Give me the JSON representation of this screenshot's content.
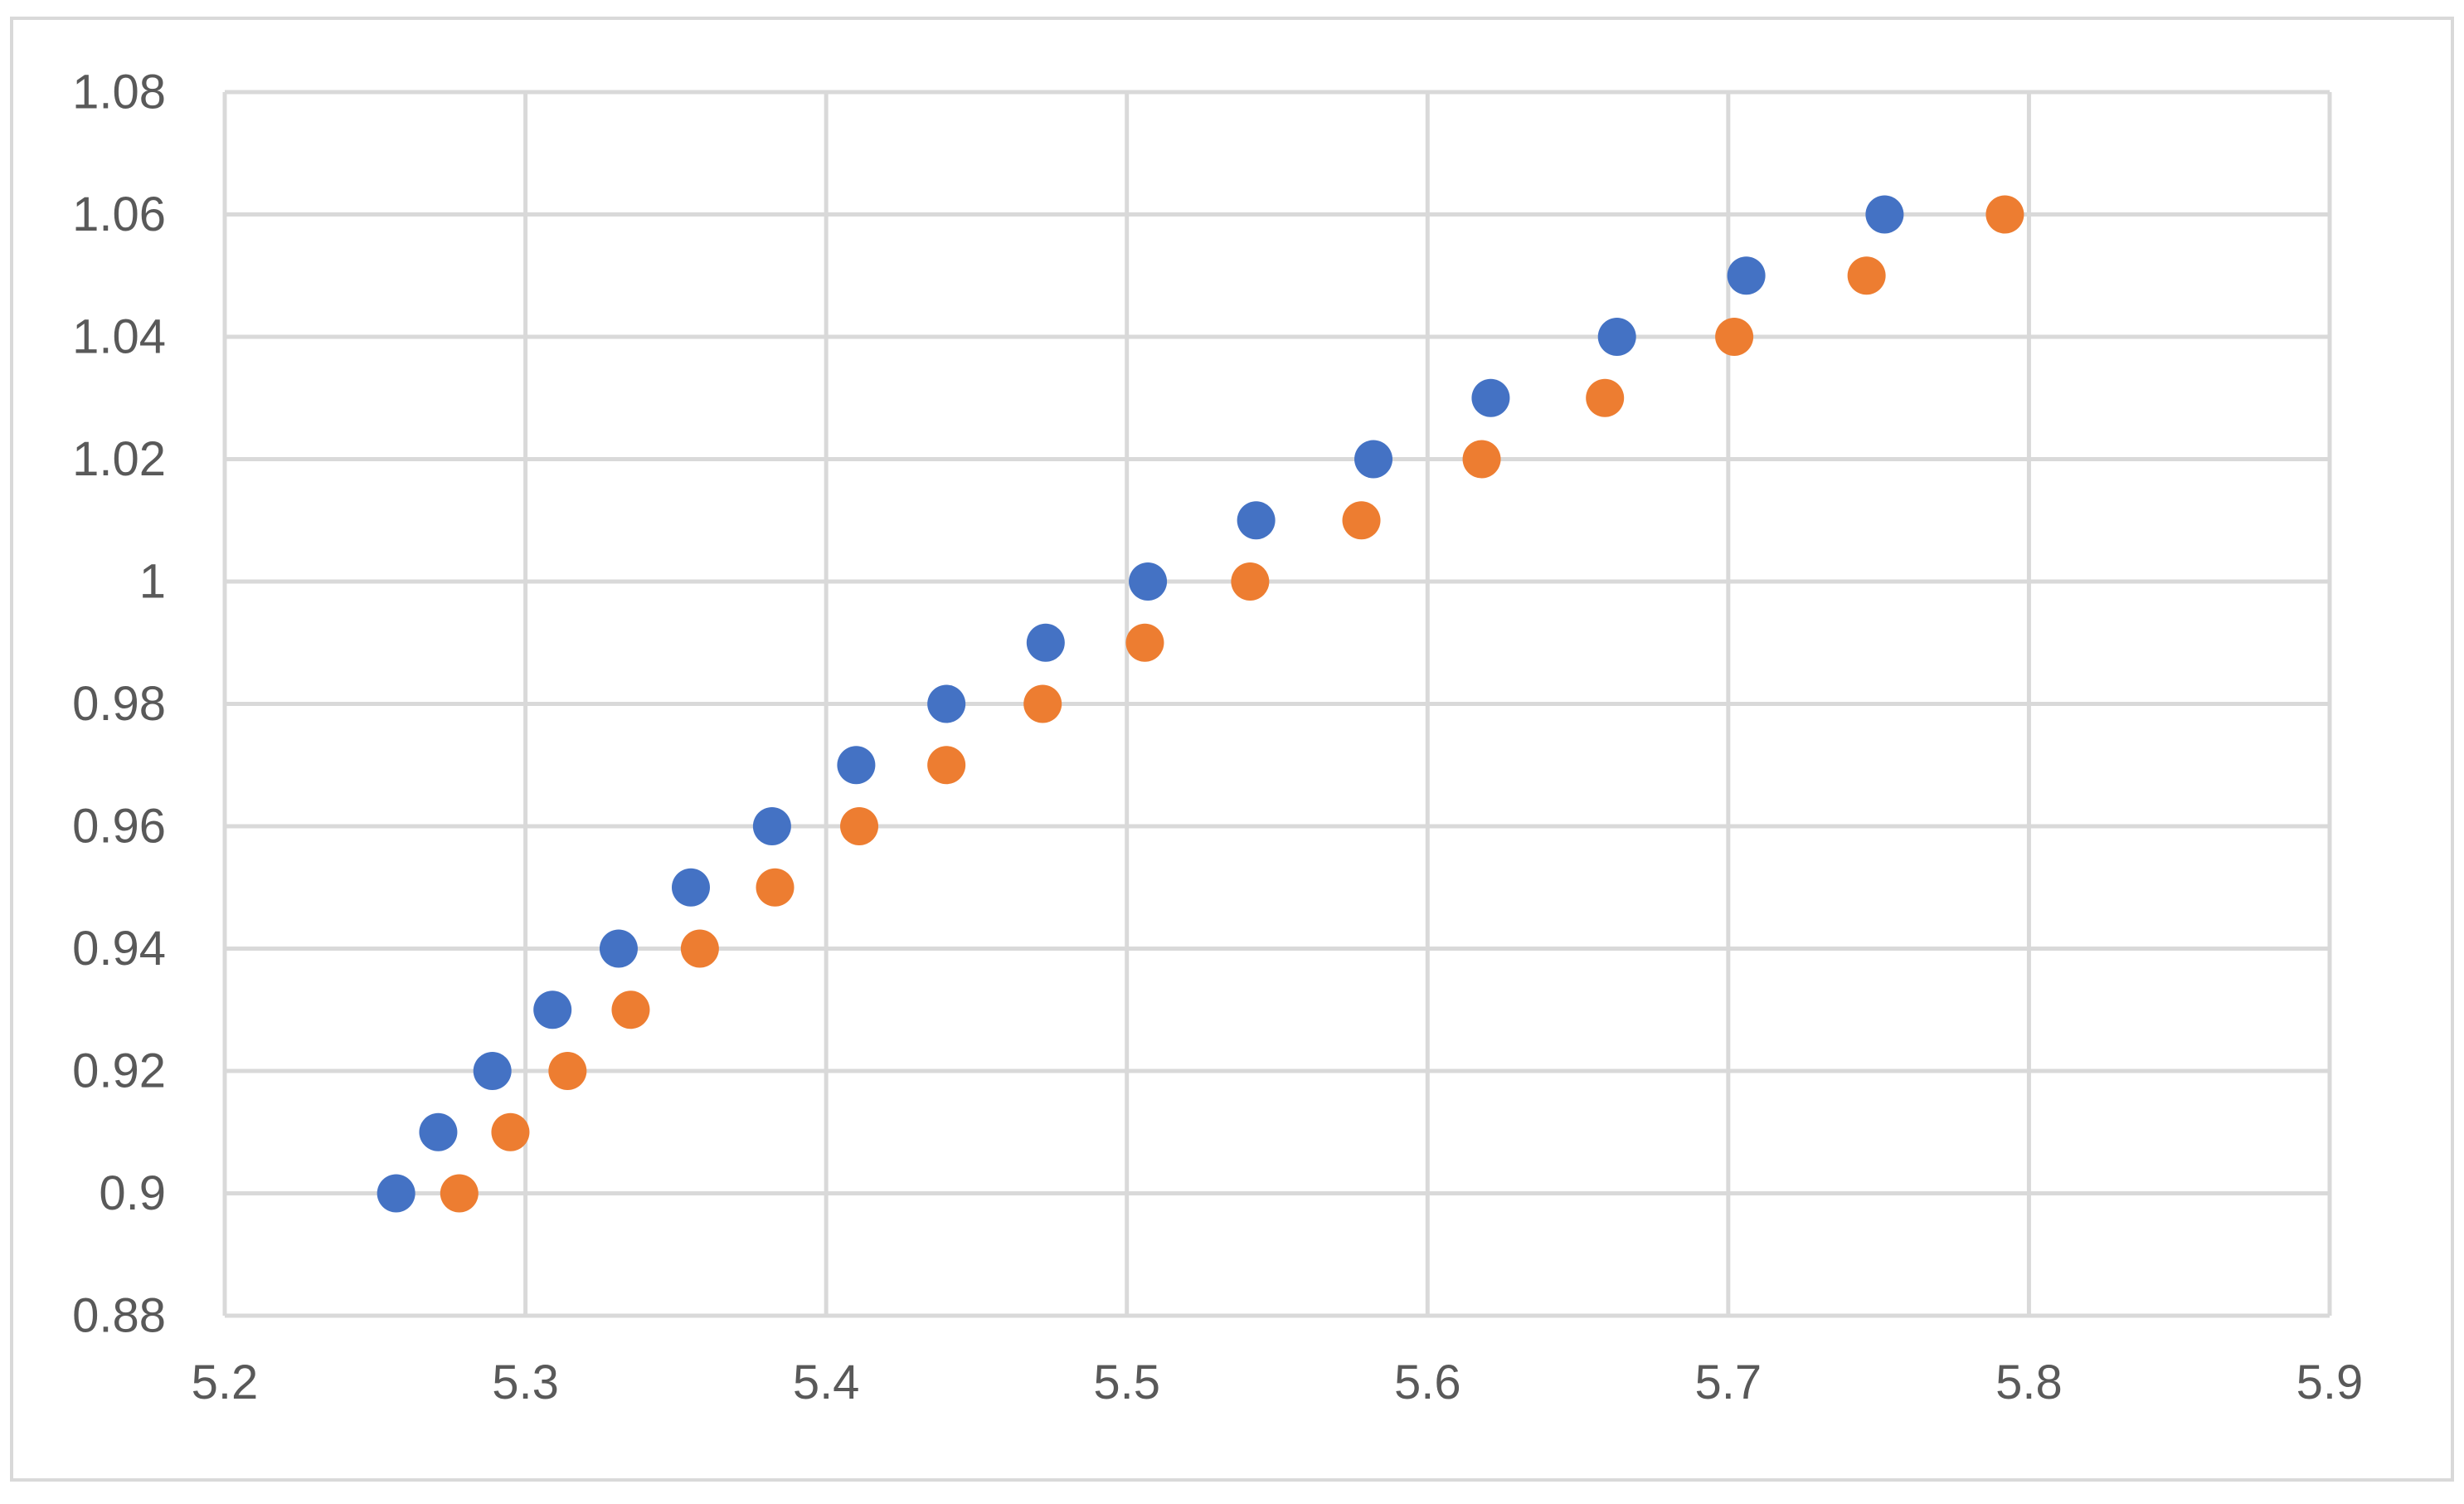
{
  "chart_data": {
    "type": "scatter",
    "title": "",
    "xlabel": "",
    "ylabel": "",
    "xlim": [
      5.2,
      5.9
    ],
    "ylim": [
      0.88,
      1.08
    ],
    "x_ticks": [
      5.2,
      5.3,
      5.4,
      5.5,
      5.6,
      5.7,
      5.8,
      5.9
    ],
    "x_tick_labels": [
      "5.2",
      "5.3",
      "5.4",
      "5.5",
      "5.6",
      "5.7",
      "5.8",
      "5.9"
    ],
    "y_ticks": [
      0.88,
      0.9,
      0.92,
      0.94,
      0.96,
      0.98,
      1.0,
      1.02,
      1.04,
      1.06,
      1.08
    ],
    "y_tick_labels": [
      "0.88",
      "0.9",
      "0.92",
      "0.94",
      "0.96",
      "0.98",
      "1",
      "1.02",
      "1.04",
      "1.06",
      "1.08"
    ],
    "grid": true,
    "legend": "none",
    "series": [
      {
        "color": "#4472C4",
        "points": [
          {
            "x": 5.257,
            "y": 0.9
          },
          {
            "x": 5.271,
            "y": 0.91
          },
          {
            "x": 5.289,
            "y": 0.92
          },
          {
            "x": 5.309,
            "y": 0.93
          },
          {
            "x": 5.331,
            "y": 0.94
          },
          {
            "x": 5.355,
            "y": 0.95
          },
          {
            "x": 5.382,
            "y": 0.96
          },
          {
            "x": 5.41,
            "y": 0.97
          },
          {
            "x": 5.44,
            "y": 0.98
          },
          {
            "x": 5.473,
            "y": 0.99
          },
          {
            "x": 5.507,
            "y": 1.0
          },
          {
            "x": 5.543,
            "y": 1.01
          },
          {
            "x": 5.582,
            "y": 1.02
          },
          {
            "x": 5.621,
            "y": 1.03
          },
          {
            "x": 5.663,
            "y": 1.04
          },
          {
            "x": 5.706,
            "y": 1.05
          },
          {
            "x": 5.752,
            "y": 1.06
          }
        ]
      },
      {
        "color": "#ED7D31",
        "points": [
          {
            "x": 5.278,
            "y": 0.9
          },
          {
            "x": 5.295,
            "y": 0.91
          },
          {
            "x": 5.314,
            "y": 0.92
          },
          {
            "x": 5.335,
            "y": 0.93
          },
          {
            "x": 5.358,
            "y": 0.94
          },
          {
            "x": 5.383,
            "y": 0.95
          },
          {
            "x": 5.411,
            "y": 0.96
          },
          {
            "x": 5.44,
            "y": 0.97
          },
          {
            "x": 5.472,
            "y": 0.98
          },
          {
            "x": 5.506,
            "y": 0.99
          },
          {
            "x": 5.541,
            "y": 1.0
          },
          {
            "x": 5.578,
            "y": 1.01
          },
          {
            "x": 5.618,
            "y": 1.02
          },
          {
            "x": 5.659,
            "y": 1.03
          },
          {
            "x": 5.702,
            "y": 1.04
          },
          {
            "x": 5.746,
            "y": 1.05
          },
          {
            "x": 5.792,
            "y": 1.06
          }
        ]
      }
    ]
  },
  "style": {
    "grid_color": "#D9D9D9",
    "frame_color": "#D9D9D9",
    "tick_label_color": "#595959",
    "background": "#FFFFFF"
  }
}
